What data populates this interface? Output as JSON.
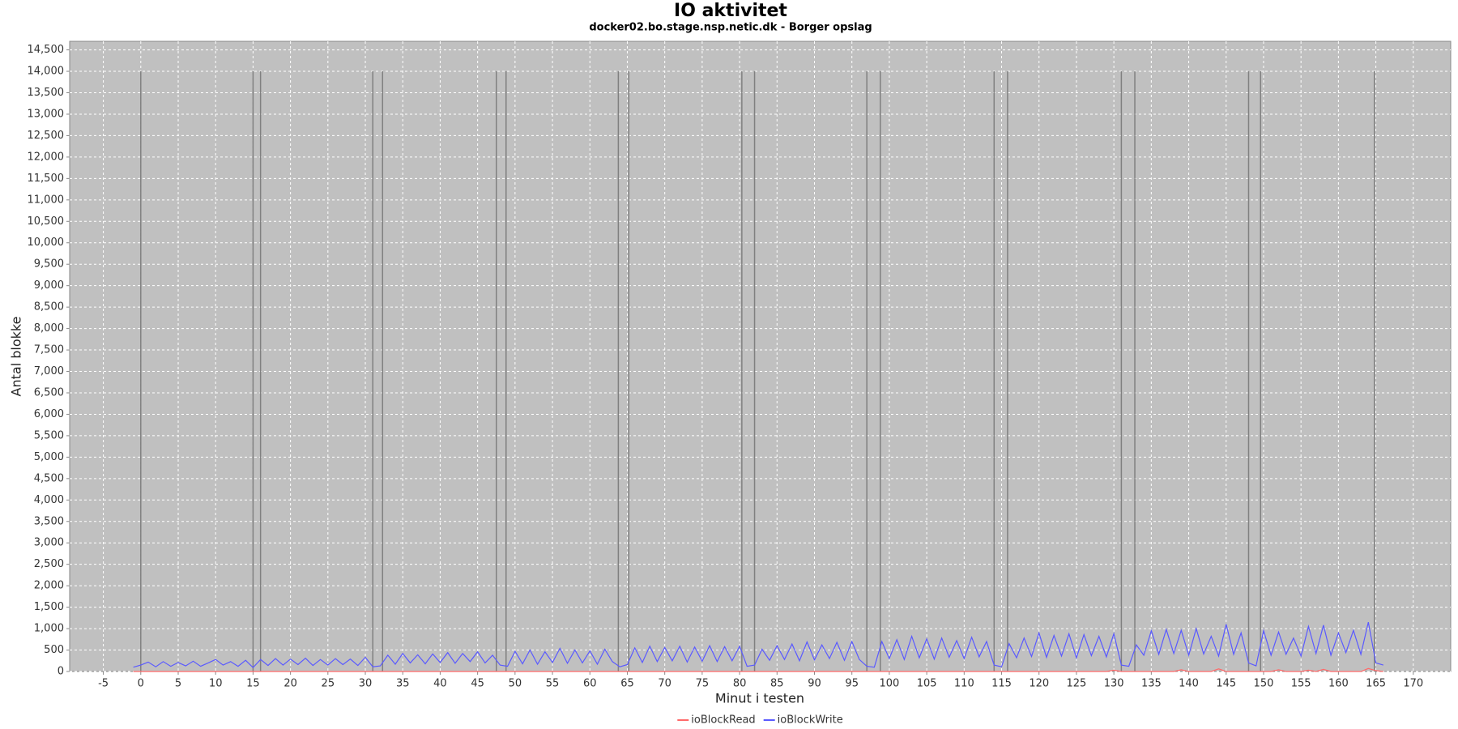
{
  "chart_data": {
    "type": "line",
    "title": "IO aktivitet",
    "subtitle": "docker02.bo.stage.nsp.netic.dk - Borger opslag",
    "x_label": "Minut i testen",
    "y_label": "Antal blokke",
    "xlim": [
      -9.5,
      175
    ],
    "ylim": [
      0,
      14700
    ],
    "grid": true,
    "legend": "bottom",
    "background": "#c0c0c0",
    "xticks": [
      -5,
      0,
      5,
      10,
      15,
      20,
      25,
      30,
      35,
      40,
      45,
      50,
      55,
      60,
      65,
      70,
      75,
      80,
      85,
      90,
      95,
      100,
      105,
      110,
      115,
      120,
      125,
      130,
      135,
      140,
      145,
      150,
      155,
      160,
      165,
      170
    ],
    "yticks": [
      0,
      500,
      {
        "value": 1000,
        "label": "1,000"
      },
      {
        "value": 1500,
        "label": "1,500"
      },
      {
        "value": 2000,
        "label": "2,000"
      },
      {
        "value": 2500,
        "label": "2,500"
      },
      {
        "value": 3000,
        "label": "3,000"
      },
      {
        "value": 3500,
        "label": "3,500"
      },
      {
        "value": 4000,
        "label": "4,000"
      },
      {
        "value": 4500,
        "label": "4,500"
      },
      {
        "value": 5000,
        "label": "5,000"
      },
      {
        "value": 5500,
        "label": "5,500"
      },
      {
        "value": 6000,
        "label": "6,000"
      },
      {
        "value": 6500,
        "label": "6,500"
      },
      {
        "value": 7000,
        "label": "7,000"
      },
      {
        "value": 7500,
        "label": "7,500"
      },
      {
        "value": 8000,
        "label": "8,000"
      },
      {
        "value": 8500,
        "label": "8,500"
      },
      {
        "value": 9000,
        "label": "9,000"
      },
      {
        "value": 9500,
        "label": "9,500"
      },
      {
        "value": 10000,
        "label": "10,000"
      },
      {
        "value": 10500,
        "label": "10,500"
      },
      {
        "value": 11000,
        "label": "11,000"
      },
      {
        "value": 11500,
        "label": "11,500"
      },
      {
        "value": 12000,
        "label": "12,000"
      },
      {
        "value": 12500,
        "label": "12,500"
      },
      {
        "value": 13000,
        "label": "13,000"
      },
      {
        "value": 13500,
        "label": "13,500"
      },
      {
        "value": 14000,
        "label": "14,000"
      },
      {
        "value": 14500,
        "label": "14,500"
      }
    ],
    "markers": {
      "x": [
        0,
        15,
        16,
        31,
        32.3,
        47.5,
        48.8,
        63.8,
        65.2,
        80.3,
        82,
        97,
        98.8,
        114,
        115.8,
        131,
        132.8,
        148,
        149.6,
        164.8
      ],
      "height": 14000,
      "color": "#808080"
    },
    "x": [
      -1,
      0,
      1,
      2,
      3,
      4,
      5,
      6,
      7,
      8,
      9,
      10,
      11,
      12,
      13,
      14,
      15,
      16,
      17,
      18,
      19,
      20,
      21,
      22,
      23,
      24,
      25,
      26,
      27,
      28,
      29,
      30,
      31,
      32,
      33,
      34,
      35,
      36,
      37,
      38,
      39,
      40,
      41,
      42,
      43,
      44,
      45,
      46,
      47,
      48,
      49,
      50,
      51,
      52,
      53,
      54,
      55,
      56,
      57,
      58,
      59,
      60,
      61,
      62,
      63,
      64,
      65,
      66,
      67,
      68,
      69,
      70,
      71,
      72,
      73,
      74,
      75,
      76,
      77,
      78,
      79,
      80,
      81,
      82,
      83,
      84,
      85,
      86,
      87,
      88,
      89,
      90,
      91,
      92,
      93,
      94,
      95,
      96,
      97,
      98,
      99,
      100,
      101,
      102,
      103,
      104,
      105,
      106,
      107,
      108,
      109,
      110,
      111,
      112,
      113,
      114,
      115,
      116,
      117,
      118,
      119,
      120,
      121,
      122,
      123,
      124,
      125,
      126,
      127,
      128,
      129,
      130,
      131,
      132,
      133,
      134,
      135,
      136,
      137,
      138,
      139,
      140,
      141,
      142,
      143,
      144,
      145,
      146,
      147,
      148,
      149,
      150,
      151,
      152,
      153,
      154,
      155,
      156,
      157,
      158,
      159,
      160,
      161,
      162,
      163,
      164,
      165,
      166
    ],
    "series": [
      {
        "name": "ioBlockRead",
        "color": "#ff6a6a",
        "values": [
          0,
          0,
          0,
          0,
          0,
          0,
          0,
          0,
          0,
          0,
          0,
          0,
          0,
          0,
          0,
          0,
          0,
          0,
          0,
          0,
          0,
          0,
          0,
          0,
          0,
          0,
          0,
          0,
          0,
          0,
          0,
          0,
          0,
          0,
          0,
          0,
          0,
          0,
          0,
          0,
          0,
          0,
          0,
          0,
          0,
          0,
          0,
          0,
          0,
          0,
          0,
          0,
          0,
          0,
          0,
          0,
          0,
          0,
          0,
          0,
          0,
          0,
          0,
          0,
          0,
          0,
          0,
          0,
          0,
          0,
          0,
          0,
          0,
          0,
          0,
          0,
          0,
          0,
          0,
          0,
          0,
          0,
          0,
          0,
          0,
          0,
          0,
          0,
          0,
          0,
          0,
          0,
          0,
          0,
          0,
          0,
          0,
          0,
          0,
          0,
          0,
          0,
          0,
          0,
          0,
          0,
          0,
          0,
          0,
          0,
          0,
          0,
          0,
          0,
          0,
          0,
          0,
          0,
          0,
          0,
          0,
          0,
          0,
          0,
          0,
          0,
          0,
          0,
          0,
          0,
          0,
          30,
          0,
          0,
          0,
          0,
          0,
          0,
          0,
          0,
          40,
          0,
          0,
          0,
          0,
          60,
          0,
          0,
          0,
          0,
          0,
          0,
          0,
          40,
          0,
          0,
          0,
          30,
          0,
          50,
          0,
          0,
          0,
          0,
          0,
          70,
          20,
          0
        ]
      },
      {
        "name": "ioBlockWrite",
        "color": "#5a5aff",
        "values": [
          100,
          150,
          220,
          110,
          230,
          120,
          210,
          130,
          240,
          120,
          200,
          280,
          150,
          230,
          120,
          260,
          90,
          280,
          140,
          300,
          150,
          290,
          160,
          310,
          140,
          280,
          150,
          300,
          160,
          290,
          140,
          330,
          110,
          130,
          380,
          170,
          420,
          200,
          390,
          180,
          410,
          210,
          440,
          190,
          420,
          230,
          460,
          200,
          380,
          150,
          120,
          470,
          180,
          500,
          170,
          460,
          210,
          540,
          190,
          500,
          200,
          480,
          170,
          520,
          230,
          110,
          160,
          550,
          210,
          590,
          230,
          560,
          250,
          590,
          220,
          570,
          240,
          600,
          230,
          580,
          250,
          590,
          120,
          150,
          520,
          260,
          600,
          280,
          640,
          250,
          690,
          270,
          620,
          300,
          680,
          260,
          700,
          280,
          120,
          100,
          700,
          300,
          740,
          280,
          820,
          320,
          760,
          290,
          780,
          330,
          720,
          300,
          800,
          340,
          700,
          150,
          110,
          650,
          320,
          780,
          350,
          900,
          330,
          840,
          360,
          880,
          320,
          860,
          370,
          820,
          340,
          880,
          150,
          120,
          620,
          380,
          950,
          400,
          980,
          420,
          960,
          380,
          1000,
          410,
          820,
          360,
          1100,
          400,
          900,
          200,
          130,
          950,
          380,
          920,
          400,
          780,
          360,
          1050,
          420,
          1080,
          380,
          900,
          440,
          960,
          400,
          1150,
          200,
          150
        ]
      }
    ]
  }
}
